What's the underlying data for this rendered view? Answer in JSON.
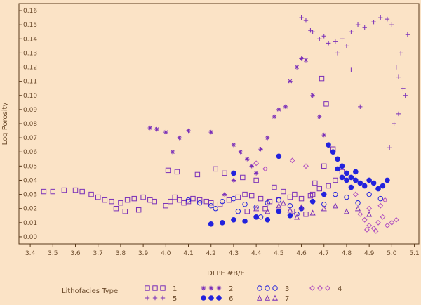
{
  "chart_data": {
    "type": "scatter",
    "xlabel": "DLPE #B/E",
    "ylabel": "Log Porosity",
    "xlim": [
      3.35,
      5.12
    ],
    "ylim": [
      -0.005,
      0.165
    ],
    "x_ticks": [
      3.4,
      3.5,
      3.6,
      3.7,
      3.8,
      3.9,
      4.0,
      4.1,
      4.2,
      4.3,
      4.4,
      4.5,
      4.6,
      4.7,
      4.8,
      4.9,
      5.0,
      5.1
    ],
    "x_tick_labels": [
      "3.4",
      "3.5",
      "3.6",
      "3.7",
      "3.8",
      "3.9",
      "4.0",
      "4.1",
      "4.2",
      "4.3",
      "4.4",
      "4.5",
      "4.6",
      "4.7",
      "4.8",
      "4.9",
      "5.0",
      "5.1"
    ],
    "y_ticks": [
      0.0,
      0.01,
      0.02,
      0.03,
      0.04,
      0.05,
      0.06,
      0.07,
      0.08,
      0.09,
      0.1,
      0.11,
      0.12,
      0.13,
      0.14,
      0.15,
      0.16
    ],
    "y_tick_labels": [
      "0.00",
      "0.01",
      "0.02",
      "0.03",
      "0.04",
      "0.05",
      "0.06",
      "0.07",
      "0.08",
      "0.09",
      "0.10",
      "0.11",
      "0.12",
      "0.13",
      "0.14",
      "0.15",
      "0.16"
    ],
    "grid": false,
    "legend": {
      "title": "Lithofacies Type",
      "placement": "bottom"
    },
    "colors": {
      "background": "#fbe3c6",
      "frame": "#5a3a1a",
      "ink": "#6b4a2b",
      "purple": "#7a2fb8",
      "blue": "#2222dd"
    },
    "series": [
      {
        "name": "1",
        "marker": "square",
        "color": "#7a2fb8",
        "x": [
          3.46,
          3.5,
          3.55,
          3.6,
          3.63,
          3.67,
          3.7,
          3.73,
          3.76,
          3.8,
          3.83,
          3.86,
          3.9,
          3.93,
          3.95,
          4.0,
          4.02,
          4.04,
          4.06,
          4.08,
          4.1,
          4.12,
          4.15,
          4.18,
          4.2,
          4.24,
          4.28,
          4.32,
          4.35,
          4.38,
          4.42,
          4.46,
          4.5,
          4.55,
          4.6,
          4.65,
          4.68,
          4.72,
          4.75,
          4.78,
          4.56,
          4.62,
          4.66,
          4.7,
          4.74,
          3.78,
          3.82,
          3.88,
          4.01,
          4.05,
          4.14,
          4.22,
          4.26,
          4.34,
          4.4,
          4.48,
          4.52,
          4.57,
          4.64,
          4.69,
          4.71,
          4.44,
          4.36
        ],
        "y": [
          0.032,
          0.032,
          0.033,
          0.033,
          0.032,
          0.03,
          0.028,
          0.026,
          0.025,
          0.024,
          0.026,
          0.027,
          0.028,
          0.026,
          0.025,
          0.022,
          0.025,
          0.028,
          0.026,
          0.024,
          0.025,
          0.027,
          0.026,
          0.025,
          0.024,
          0.023,
          0.026,
          0.028,
          0.03,
          0.029,
          0.027,
          0.025,
          0.026,
          0.028,
          0.027,
          0.03,
          0.034,
          0.036,
          0.04,
          0.046,
          0.018,
          0.016,
          0.038,
          0.05,
          0.062,
          0.02,
          0.018,
          0.019,
          0.047,
          0.046,
          0.044,
          0.048,
          0.045,
          0.042,
          0.04,
          0.035,
          0.032,
          0.03,
          0.029,
          0.112,
          0.094,
          0.02,
          0.018
        ]
      },
      {
        "name": "2",
        "marker": "asterisk",
        "color": "#7a2fb8",
        "x": [
          3.93,
          3.96,
          4.0,
          4.03,
          4.06,
          4.1,
          4.2,
          4.3,
          4.33,
          4.36,
          4.38,
          4.4,
          4.45,
          4.48,
          4.5,
          4.53,
          4.55,
          4.58,
          4.6,
          4.62,
          4.65,
          4.68,
          4.7,
          4.42,
          4.3,
          4.26
        ],
        "y": [
          0.077,
          0.076,
          0.074,
          0.06,
          0.07,
          0.075,
          0.074,
          0.065,
          0.06,
          0.055,
          0.05,
          0.045,
          0.07,
          0.085,
          0.09,
          0.092,
          0.11,
          0.12,
          0.126,
          0.125,
          0.1,
          0.085,
          0.072,
          0.062,
          0.04,
          0.03
        ]
      },
      {
        "name": "3",
        "marker": "circle",
        "color": "#2222dd",
        "x": [
          4.1,
          4.15,
          4.2,
          4.25,
          4.3,
          4.35,
          4.4,
          4.45,
          4.5,
          4.55,
          4.6,
          4.65,
          4.7,
          4.75,
          4.8,
          4.85,
          4.9,
          4.95,
          4.58,
          4.42,
          4.32,
          4.22
        ],
        "y": [
          0.026,
          0.024,
          0.022,
          0.025,
          0.027,
          0.023,
          0.021,
          0.024,
          0.026,
          0.022,
          0.02,
          0.025,
          0.023,
          0.03,
          0.028,
          0.024,
          0.03,
          0.027,
          0.016,
          0.014,
          0.018,
          0.02
        ]
      },
      {
        "name": "4",
        "marker": "diamond",
        "color": "#b04fc0",
        "x": [
          4.88,
          4.9,
          4.92,
          4.94,
          4.96,
          4.98,
          5.0,
          5.02,
          4.9,
          4.86,
          4.84,
          4.95,
          4.97,
          4.93,
          4.89,
          4.44,
          4.4,
          4.56,
          4.62
        ],
        "y": [
          0.012,
          0.008,
          0.006,
          0.01,
          0.014,
          0.008,
          0.01,
          0.012,
          0.02,
          0.016,
          0.03,
          0.022,
          0.026,
          0.004,
          0.005,
          0.048,
          0.052,
          0.054,
          0.05
        ]
      },
      {
        "name": "5",
        "marker": "plus",
        "color": "#7a2fb8",
        "x": [
          4.62,
          4.65,
          4.7,
          4.75,
          4.78,
          4.8,
          4.82,
          4.85,
          4.88,
          4.92,
          4.95,
          4.98,
          5.0,
          5.02,
          5.03,
          5.04,
          5.05,
          5.06,
          5.07,
          4.76,
          4.82,
          4.86,
          5.01,
          4.99,
          5.03,
          4.68,
          4.72,
          4.64,
          4.6
        ],
        "y": [
          0.153,
          0.145,
          0.142,
          0.138,
          0.14,
          0.135,
          0.145,
          0.15,
          0.148,
          0.152,
          0.155,
          0.154,
          0.15,
          0.12,
          0.113,
          0.13,
          0.105,
          0.1,
          0.143,
          0.13,
          0.118,
          0.092,
          0.08,
          0.063,
          0.087,
          0.14,
          0.137,
          0.146,
          0.155
        ]
      },
      {
        "name": "6",
        "marker": "dot",
        "color": "#2222dd",
        "x": [
          4.2,
          4.25,
          4.3,
          4.35,
          4.4,
          4.45,
          4.5,
          4.55,
          4.6,
          4.65,
          4.7,
          4.72,
          4.74,
          4.76,
          4.78,
          4.8,
          4.82,
          4.84,
          4.86,
          4.88,
          4.9,
          4.92,
          4.94,
          4.96,
          4.98,
          4.3,
          4.5,
          4.8,
          4.82,
          4.78,
          4.84,
          4.76
        ],
        "y": [
          0.009,
          0.01,
          0.012,
          0.011,
          0.014,
          0.012,
          0.018,
          0.015,
          0.02,
          0.025,
          0.03,
          0.065,
          0.06,
          0.055,
          0.05,
          0.045,
          0.042,
          0.04,
          0.038,
          0.036,
          0.04,
          0.038,
          0.034,
          0.036,
          0.04,
          0.045,
          0.057,
          0.04,
          0.035,
          0.042,
          0.046,
          0.048
        ]
      },
      {
        "name": "7",
        "marker": "triangle",
        "color": "#7a2fb8",
        "x": [
          4.4,
          4.45,
          4.5,
          4.55,
          4.6,
          4.65,
          4.7,
          4.75,
          4.8,
          4.85,
          4.9,
          4.52,
          4.58
        ],
        "y": [
          0.02,
          0.018,
          0.022,
          0.019,
          0.021,
          0.017,
          0.02,
          0.022,
          0.018,
          0.02,
          0.016,
          0.024,
          0.014
        ]
      }
    ]
  }
}
